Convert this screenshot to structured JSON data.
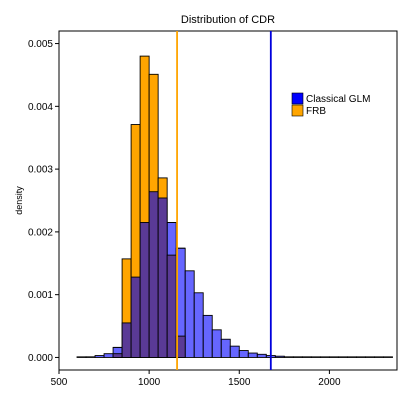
{
  "chart_data": {
    "type": "bar",
    "title": "Distribution of CDR",
    "xlabel": "",
    "ylabel": "density",
    "xlim": [
      500,
      2375
    ],
    "ylim": [
      -0.0002,
      0.0052
    ],
    "x_ticks": [
      500,
      1000,
      1500,
      2000
    ],
    "x_tick_labels": [
      "500",
      "1000",
      "1500",
      "2000"
    ],
    "y_ticks": [
      0,
      0.001,
      0.002,
      0.003,
      0.004,
      0.005
    ],
    "y_tick_labels": [
      "0.000",
      "0.001",
      "0.002",
      "0.003",
      "0.004",
      "0.005"
    ],
    "grid": false,
    "legend_position": "top-right",
    "bin_width": 50,
    "colors": {
      "classical": "#4444ff",
      "frb": "#ffa500",
      "overlap": "#5a3a96",
      "classical_line": "#0000dd",
      "frb_line": "#ffa500",
      "legend_classical": "#0000ff",
      "legend_frb": "#ffa500"
    },
    "series": [
      {
        "name": "Classical GLM",
        "bin_starts": [
          600,
          650,
          700,
          750,
          800,
          850,
          900,
          950,
          1000,
          1050,
          1100,
          1150,
          1200,
          1250,
          1300,
          1350,
          1400,
          1450,
          1500,
          1550,
          1600,
          1650,
          1700,
          1750,
          1800,
          1850,
          1900,
          1950,
          2000,
          2050,
          2100,
          2150,
          2200,
          2250,
          2300
        ],
        "values": [
          0.0,
          1e-05,
          3e-05,
          6e-05,
          0.00016,
          0.00055,
          0.00128,
          0.00215,
          0.00264,
          0.00254,
          0.00215,
          0.00174,
          0.00138,
          0.00103,
          0.00067,
          0.00044,
          0.00029,
          0.00018,
          0.00011,
          7e-05,
          5e-05,
          3e-05,
          2e-05,
          1e-05,
          1e-05,
          1e-05,
          0.0,
          0.0,
          0.0,
          0.0,
          0.0,
          0.0,
          0.0,
          0.0,
          0.0
        ]
      },
      {
        "name": "FRB",
        "bin_starts": [
          800,
          850,
          900,
          950,
          1000,
          1050,
          1100,
          1150
        ],
        "values": [
          6e-05,
          0.00157,
          0.00371,
          0.0048,
          0.00451,
          0.00286,
          0.00163,
          0.00034
        ]
      }
    ],
    "vlines": [
      {
        "name": "Classical GLM",
        "x": 1675
      },
      {
        "name": "FRB",
        "x": 1155
      }
    ]
  }
}
